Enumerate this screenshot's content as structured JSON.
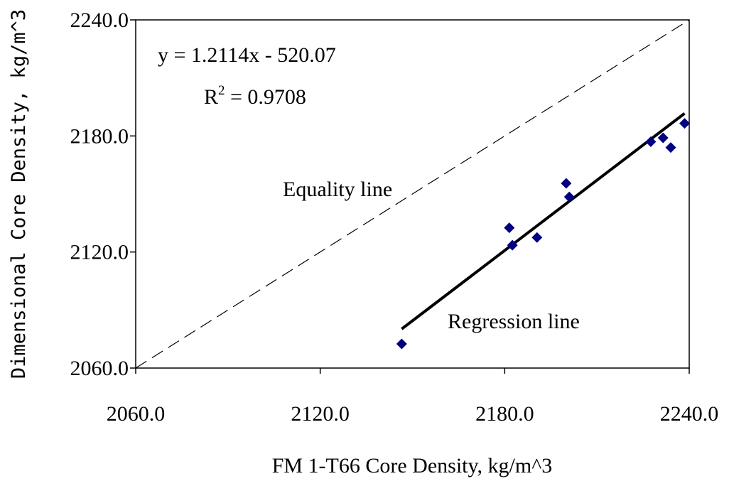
{
  "chart_data": {
    "type": "scatter",
    "title": "",
    "xlabel": "FM 1-T66 Core Density, kg/m^3",
    "ylabel": "Dimensional Core Density,  kg/m^3",
    "xlim": [
      2060.0,
      2240.0
    ],
    "ylim": [
      2060.0,
      2240.0
    ],
    "x_ticks": [
      "2060.0",
      "2120.0",
      "2180.0",
      "2240.0"
    ],
    "y_ticks": [
      "2060.0",
      "2120.0",
      "2180.0",
      "2240.0"
    ],
    "grid": false,
    "legend": "none",
    "marker_color": "#000080",
    "series": [
      {
        "points": [
          {
            "x": 2146.5,
            "y": 2072.5
          },
          {
            "x": 2181.5,
            "y": 2132.5
          },
          {
            "x": 2182.5,
            "y": 2123.5
          },
          {
            "x": 2190.5,
            "y": 2127.5
          },
          {
            "x": 2200.0,
            "y": 2155.5
          },
          {
            "x": 2201.0,
            "y": 2148.5
          },
          {
            "x": 2227.5,
            "y": 2177.0
          },
          {
            "x": 2231.5,
            "y": 2179.0
          },
          {
            "x": 2234.0,
            "y": 2174.0
          },
          {
            "x": 2238.5,
            "y": 2186.5
          }
        ]
      }
    ],
    "regression": {
      "slope": 1.2114,
      "intercept": -520.07,
      "x_range": [
        2146.5,
        2238.5
      ],
      "equation_text": "y = 1.2114x - 520.07",
      "r2_prefix": "R",
      "r2_sup": "2",
      "r2_value": " = 0.9708",
      "label": "Regression line"
    },
    "equality_line": {
      "label": "Equality line"
    }
  }
}
